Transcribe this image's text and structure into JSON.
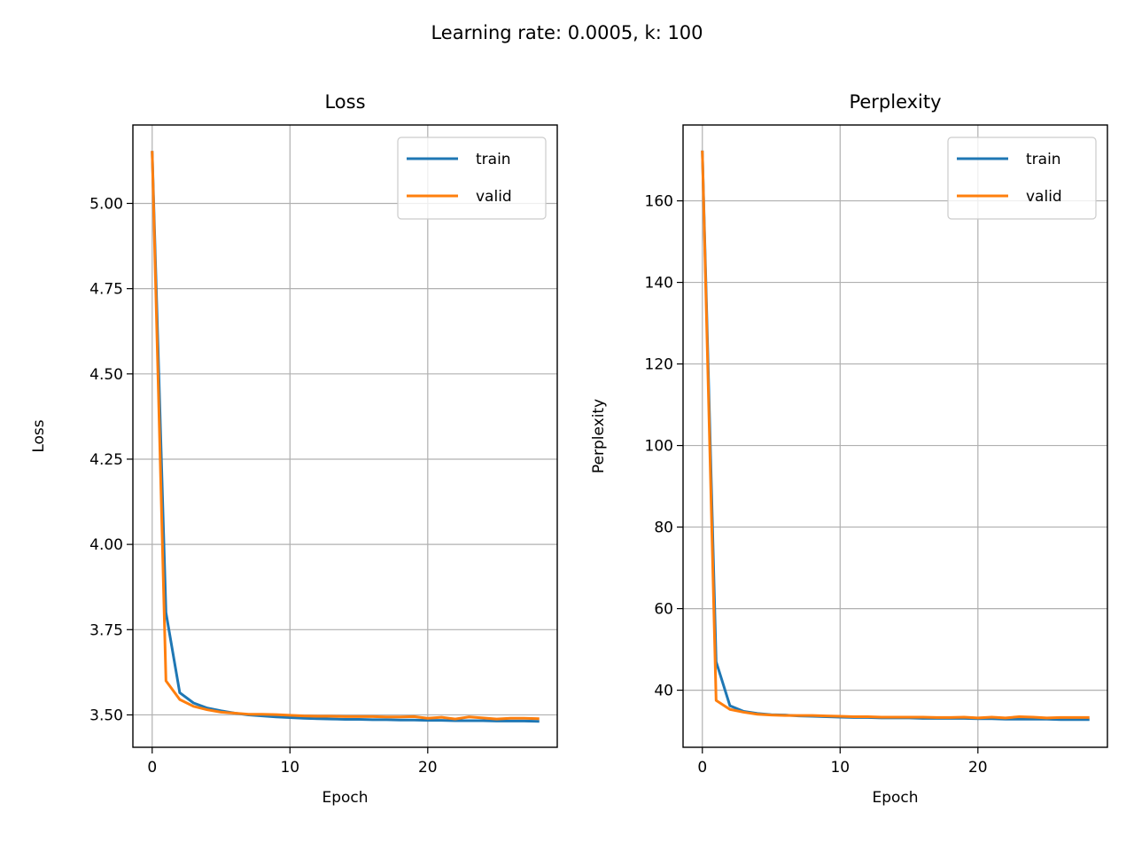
{
  "figure": {
    "suptitle": "Learning rate: 0.0005, k: 100"
  },
  "chart_data": [
    {
      "type": "line",
      "title": "Loss",
      "xlabel": "Epoch",
      "ylabel": "Loss",
      "xlim": [
        -1.4,
        29.4
      ],
      "ylim": [
        3.405,
        5.23
      ],
      "xticks": [
        0,
        10,
        20
      ],
      "yticks": [
        3.5,
        3.75,
        4.0,
        4.25,
        4.5,
        4.75,
        5.0
      ],
      "ytick_labels": [
        "3.50",
        "3.75",
        "4.00",
        "4.25",
        "4.50",
        "4.75",
        "5.00"
      ],
      "grid": true,
      "legend_position": "top-right",
      "x": [
        0,
        1,
        2,
        3,
        4,
        5,
        6,
        7,
        8,
        9,
        10,
        11,
        12,
        13,
        14,
        15,
        16,
        17,
        18,
        19,
        20,
        21,
        22,
        23,
        24,
        25,
        26,
        27,
        28
      ],
      "series": [
        {
          "name": "train",
          "color": "#1f77b4",
          "values": [
            5.15,
            3.8,
            3.565,
            3.535,
            3.52,
            3.512,
            3.505,
            3.5,
            3.497,
            3.494,
            3.492,
            3.49,
            3.489,
            3.488,
            3.487,
            3.487,
            3.486,
            3.486,
            3.485,
            3.485,
            3.484,
            3.484,
            3.483,
            3.483,
            3.483,
            3.482,
            3.482,
            3.482,
            3.481
          ]
        },
        {
          "name": "valid",
          "color": "#ff7f0e",
          "values": [
            5.15,
            3.6,
            3.545,
            3.525,
            3.515,
            3.508,
            3.505,
            3.502,
            3.502,
            3.501,
            3.499,
            3.497,
            3.496,
            3.496,
            3.495,
            3.495,
            3.495,
            3.494,
            3.494,
            3.495,
            3.49,
            3.493,
            3.488,
            3.494,
            3.491,
            3.488,
            3.49,
            3.49,
            3.489
          ]
        }
      ]
    },
    {
      "type": "line",
      "title": "Perplexity",
      "xlabel": "Epoch",
      "ylabel": "Perplexity",
      "xlim": [
        -1.4,
        29.4
      ],
      "ylim": [
        26.0,
        178.6
      ],
      "xticks": [
        0,
        10,
        20
      ],
      "yticks": [
        40,
        60,
        80,
        100,
        120,
        140,
        160
      ],
      "ytick_labels": [
        "40",
        "60",
        "80",
        "100",
        "120",
        "140",
        "160"
      ],
      "grid": true,
      "legend_position": "top-right",
      "x": [
        0,
        1,
        2,
        3,
        4,
        5,
        6,
        7,
        8,
        9,
        10,
        11,
        12,
        13,
        14,
        15,
        16,
        17,
        18,
        19,
        20,
        21,
        22,
        23,
        24,
        25,
        26,
        27,
        28
      ],
      "series": [
        {
          "name": "train",
          "color": "#1f77b4",
          "values": [
            172.0,
            47.0,
            36.2,
            34.8,
            34.3,
            34.0,
            33.9,
            33.7,
            33.6,
            33.5,
            33.4,
            33.3,
            33.3,
            33.2,
            33.2,
            33.2,
            33.1,
            33.1,
            33.1,
            33.1,
            33.0,
            33.0,
            32.9,
            32.9,
            32.9,
            32.9,
            32.8,
            32.8,
            32.8
          ]
        },
        {
          "name": "valid",
          "color": "#ff7f0e",
          "values": [
            172.0,
            37.5,
            35.3,
            34.6,
            34.1,
            33.9,
            33.8,
            33.8,
            33.8,
            33.7,
            33.6,
            33.5,
            33.5,
            33.4,
            33.4,
            33.4,
            33.4,
            33.3,
            33.3,
            33.4,
            33.2,
            33.4,
            33.2,
            33.5,
            33.4,
            33.2,
            33.3,
            33.3,
            33.3
          ]
        }
      ]
    }
  ]
}
